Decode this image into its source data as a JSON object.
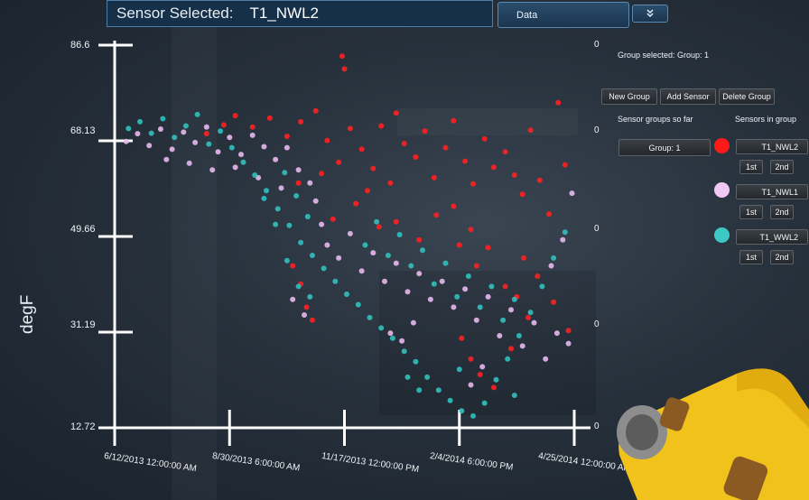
{
  "header": {
    "label": "Sensor Selected:",
    "value": "T1_NWL2"
  },
  "tabs": {
    "data_label": "Data"
  },
  "chart": {
    "ylabel": "degF",
    "y_ticks": [
      "86.6",
      "68.13",
      "49.66",
      "31.19",
      "12.72"
    ],
    "right_ticks": [
      "0",
      "0",
      "0",
      "0",
      "0"
    ],
    "x_ticks": [
      "6/12/2013 12:00:00 AM",
      "8/30/2013 6:00:00 AM",
      "11/17/2013 12:00:00 PM",
      "2/4/2014 6:00:00 PM",
      "4/25/2014 12:00:00 AM"
    ]
  },
  "panel": {
    "group_selected": "Group selected: Group: 1",
    "new_group": "New Group",
    "add_sensor": "Add Sensor",
    "delete_group": "Delete Group",
    "groups_heading": "Sensor groups so far",
    "sensors_heading": "Sensors in group",
    "groups": [
      {
        "label": "Group: 1"
      }
    ],
    "sensors": [
      {
        "name": "T1_NWL2",
        "color": "#ff1a1a",
        "first": "1st",
        "second": "2nd"
      },
      {
        "name": "T1_NWL1",
        "color": "#f0c8f4",
        "first": "1st",
        "second": "2nd"
      },
      {
        "name": "T1_WWL2",
        "color": "#3cc8c4",
        "first": "1st",
        "second": "2nd"
      }
    ]
  },
  "colors": {
    "series_1": "#ff2020",
    "series_2": "#e8b8ee",
    "series_3": "#30c0bc",
    "axis": "#ffffff"
  },
  "chart_data": {
    "type": "scatter",
    "ylabel": "degF",
    "ylim": [
      12.72,
      86.6
    ],
    "y_ticks": [
      86.6,
      68.13,
      49.66,
      31.19,
      12.72
    ],
    "x_ticks": [
      "6/12/2013 12:00:00 AM",
      "8/30/2013 6:00:00 AM",
      "11/17/2013 12:00:00 PM",
      "2/4/2014 6:00:00 PM",
      "4/25/2014 12:00:00 AM"
    ],
    "series": [
      {
        "name": "T1_NWL2",
        "color": "#ff2020",
        "points": [
          [
            0.8,
            69.5
          ],
          [
            0.95,
            71.2
          ],
          [
            1.05,
            73.0
          ],
          [
            1.2,
            70.8
          ],
          [
            1.35,
            72.5
          ],
          [
            1.5,
            69.0
          ],
          [
            1.62,
            71.8
          ],
          [
            1.75,
            73.9
          ],
          [
            1.85,
            68.2
          ],
          [
            1.95,
            64.0
          ],
          [
            2.05,
            70.5
          ],
          [
            2.15,
            66.5
          ],
          [
            2.25,
            62.8
          ],
          [
            2.32,
            71.0
          ],
          [
            2.45,
            73.5
          ],
          [
            2.52,
            67.6
          ],
          [
            2.62,
            65.0
          ],
          [
            2.7,
            70.0
          ],
          [
            2.78,
            61.0
          ],
          [
            2.88,
            66.8
          ],
          [
            2.95,
            72.0
          ],
          [
            3.05,
            64.2
          ],
          [
            3.12,
            59.8
          ],
          [
            3.22,
            68.5
          ],
          [
            3.3,
            63.0
          ],
          [
            3.4,
            66.0
          ],
          [
            3.48,
            61.5
          ],
          [
            3.55,
            57.8
          ],
          [
            3.62,
            70.2
          ],
          [
            3.7,
            60.5
          ],
          [
            3.78,
            54.0
          ],
          [
            3.86,
            75.5
          ],
          [
            3.92,
            63.5
          ],
          [
            2.0,
            82.0
          ],
          [
            1.98,
            84.5
          ],
          [
            1.6,
            60.0
          ],
          [
            1.55,
            44.0
          ],
          [
            1.62,
            40.5
          ],
          [
            1.67,
            36.0
          ],
          [
            1.72,
            33.5
          ],
          [
            2.3,
            51.5
          ],
          [
            2.45,
            52.5
          ],
          [
            2.65,
            49.0
          ],
          [
            2.8,
            53.8
          ],
          [
            3.0,
            48.0
          ],
          [
            3.1,
            51.0
          ],
          [
            2.95,
            55.5
          ],
          [
            3.15,
            44.0
          ],
          [
            3.25,
            47.5
          ],
          [
            3.4,
            40.0
          ],
          [
            3.5,
            38.0
          ],
          [
            3.6,
            34.0
          ],
          [
            3.02,
            30.0
          ],
          [
            3.1,
            26.0
          ],
          [
            3.18,
            23.0
          ],
          [
            3.3,
            20.5
          ],
          [
            3.45,
            28.0
          ],
          [
            3.56,
            45.5
          ],
          [
            3.68,
            42.0
          ],
          [
            3.82,
            37.0
          ],
          [
            3.95,
            31.5
          ],
          [
            2.1,
            56.0
          ],
          [
            2.2,
            58.5
          ],
          [
            1.9,
            53.0
          ],
          [
            1.8,
            61.8
          ],
          [
            2.4,
            60.0
          ]
        ]
      },
      {
        "name": "T1_NWL1",
        "color": "#e8b8ee",
        "points": [
          [
            0.1,
            68.0
          ],
          [
            0.2,
            69.5
          ],
          [
            0.3,
            67.2
          ],
          [
            0.4,
            70.4
          ],
          [
            0.5,
            66.5
          ],
          [
            0.6,
            69.8
          ],
          [
            0.7,
            67.8
          ],
          [
            0.8,
            70.8
          ],
          [
            0.9,
            66.0
          ],
          [
            1.0,
            68.8
          ],
          [
            1.1,
            65.5
          ],
          [
            1.2,
            69.2
          ],
          [
            1.3,
            67.0
          ],
          [
            1.4,
            64.5
          ],
          [
            1.5,
            66.8
          ],
          [
            1.6,
            62.5
          ],
          [
            1.7,
            60.0
          ],
          [
            1.75,
            56.5
          ],
          [
            1.8,
            52.0
          ],
          [
            1.85,
            48.0
          ],
          [
            1.95,
            45.5
          ],
          [
            2.05,
            50.2
          ],
          [
            2.15,
            43.0
          ],
          [
            2.25,
            46.5
          ],
          [
            2.35,
            41.0
          ],
          [
            2.45,
            44.5
          ],
          [
            2.55,
            39.0
          ],
          [
            2.65,
            42.5
          ],
          [
            2.75,
            37.5
          ],
          [
            2.85,
            41.0
          ],
          [
            2.95,
            36.0
          ],
          [
            3.05,
            39.5
          ],
          [
            3.15,
            33.5
          ],
          [
            3.25,
            38.0
          ],
          [
            3.35,
            30.5
          ],
          [
            3.45,
            35.5
          ],
          [
            3.55,
            28.5
          ],
          [
            3.65,
            33.0
          ],
          [
            3.75,
            26.0
          ],
          [
            3.85,
            31.0
          ],
          [
            3.95,
            29.0
          ],
          [
            3.98,
            58.0
          ],
          [
            3.9,
            49.0
          ],
          [
            3.8,
            44.0
          ],
          [
            2.6,
            33.0
          ],
          [
            2.5,
            29.5
          ],
          [
            2.4,
            31.0
          ],
          [
            3.2,
            24.5
          ],
          [
            3.1,
            21.0
          ],
          [
            1.55,
            37.5
          ],
          [
            1.65,
            34.5
          ],
          [
            0.45,
            64.5
          ],
          [
            0.65,
            63.8
          ],
          [
            0.85,
            62.5
          ],
          [
            1.05,
            63.0
          ],
          [
            1.25,
            61.0
          ],
          [
            1.45,
            59.0
          ]
        ]
      },
      {
        "name": "T1_WWL2",
        "color": "#30c0bc",
        "points": [
          [
            0.12,
            70.5
          ],
          [
            0.22,
            71.8
          ],
          [
            0.32,
            69.6
          ],
          [
            0.42,
            72.4
          ],
          [
            0.52,
            68.8
          ],
          [
            0.62,
            71.0
          ],
          [
            0.72,
            73.2
          ],
          [
            0.82,
            67.5
          ],
          [
            0.92,
            70.0
          ],
          [
            1.02,
            66.8
          ],
          [
            1.12,
            64.0
          ],
          [
            1.22,
            61.5
          ],
          [
            1.32,
            58.5
          ],
          [
            1.42,
            55.0
          ],
          [
            1.52,
            51.8
          ],
          [
            1.62,
            48.5
          ],
          [
            1.72,
            46.0
          ],
          [
            1.82,
            43.5
          ],
          [
            1.92,
            41.0
          ],
          [
            2.02,
            38.5
          ],
          [
            2.12,
            36.5
          ],
          [
            2.22,
            34.0
          ],
          [
            2.32,
            32.0
          ],
          [
            2.42,
            30.0
          ],
          [
            2.52,
            27.5
          ],
          [
            2.62,
            25.5
          ],
          [
            2.72,
            22.5
          ],
          [
            2.82,
            20.0
          ],
          [
            2.92,
            18.0
          ],
          [
            3.02,
            16.0
          ],
          [
            3.12,
            15.0
          ],
          [
            3.22,
            17.5
          ],
          [
            3.32,
            22.0
          ],
          [
            3.42,
            26.0
          ],
          [
            3.52,
            30.5
          ],
          [
            3.62,
            35.0
          ],
          [
            3.72,
            40.0
          ],
          [
            3.82,
            45.5
          ],
          [
            3.92,
            50.5
          ],
          [
            1.48,
            62.0
          ],
          [
            1.58,
            57.5
          ],
          [
            1.68,
            53.5
          ],
          [
            2.18,
            48.0
          ],
          [
            2.28,
            52.5
          ],
          [
            2.38,
            46.0
          ],
          [
            2.48,
            50.0
          ],
          [
            2.58,
            44.0
          ],
          [
            2.68,
            47.0
          ],
          [
            2.78,
            40.5
          ],
          [
            2.88,
            44.5
          ],
          [
            2.98,
            38.0
          ],
          [
            3.08,
            42.0
          ],
          [
            3.18,
            36.0
          ],
          [
            3.28,
            40.0
          ],
          [
            3.38,
            33.5
          ],
          [
            3.48,
            37.5
          ],
          [
            1.3,
            57.0
          ],
          [
            1.4,
            52.0
          ],
          [
            1.5,
            45.0
          ],
          [
            1.6,
            40.0
          ],
          [
            1.7,
            38.0
          ],
          [
            2.55,
            22.5
          ],
          [
            2.65,
            20.0
          ],
          [
            3.48,
            19.0
          ],
          [
            3.0,
            24.0
          ]
        ]
      }
    ]
  }
}
